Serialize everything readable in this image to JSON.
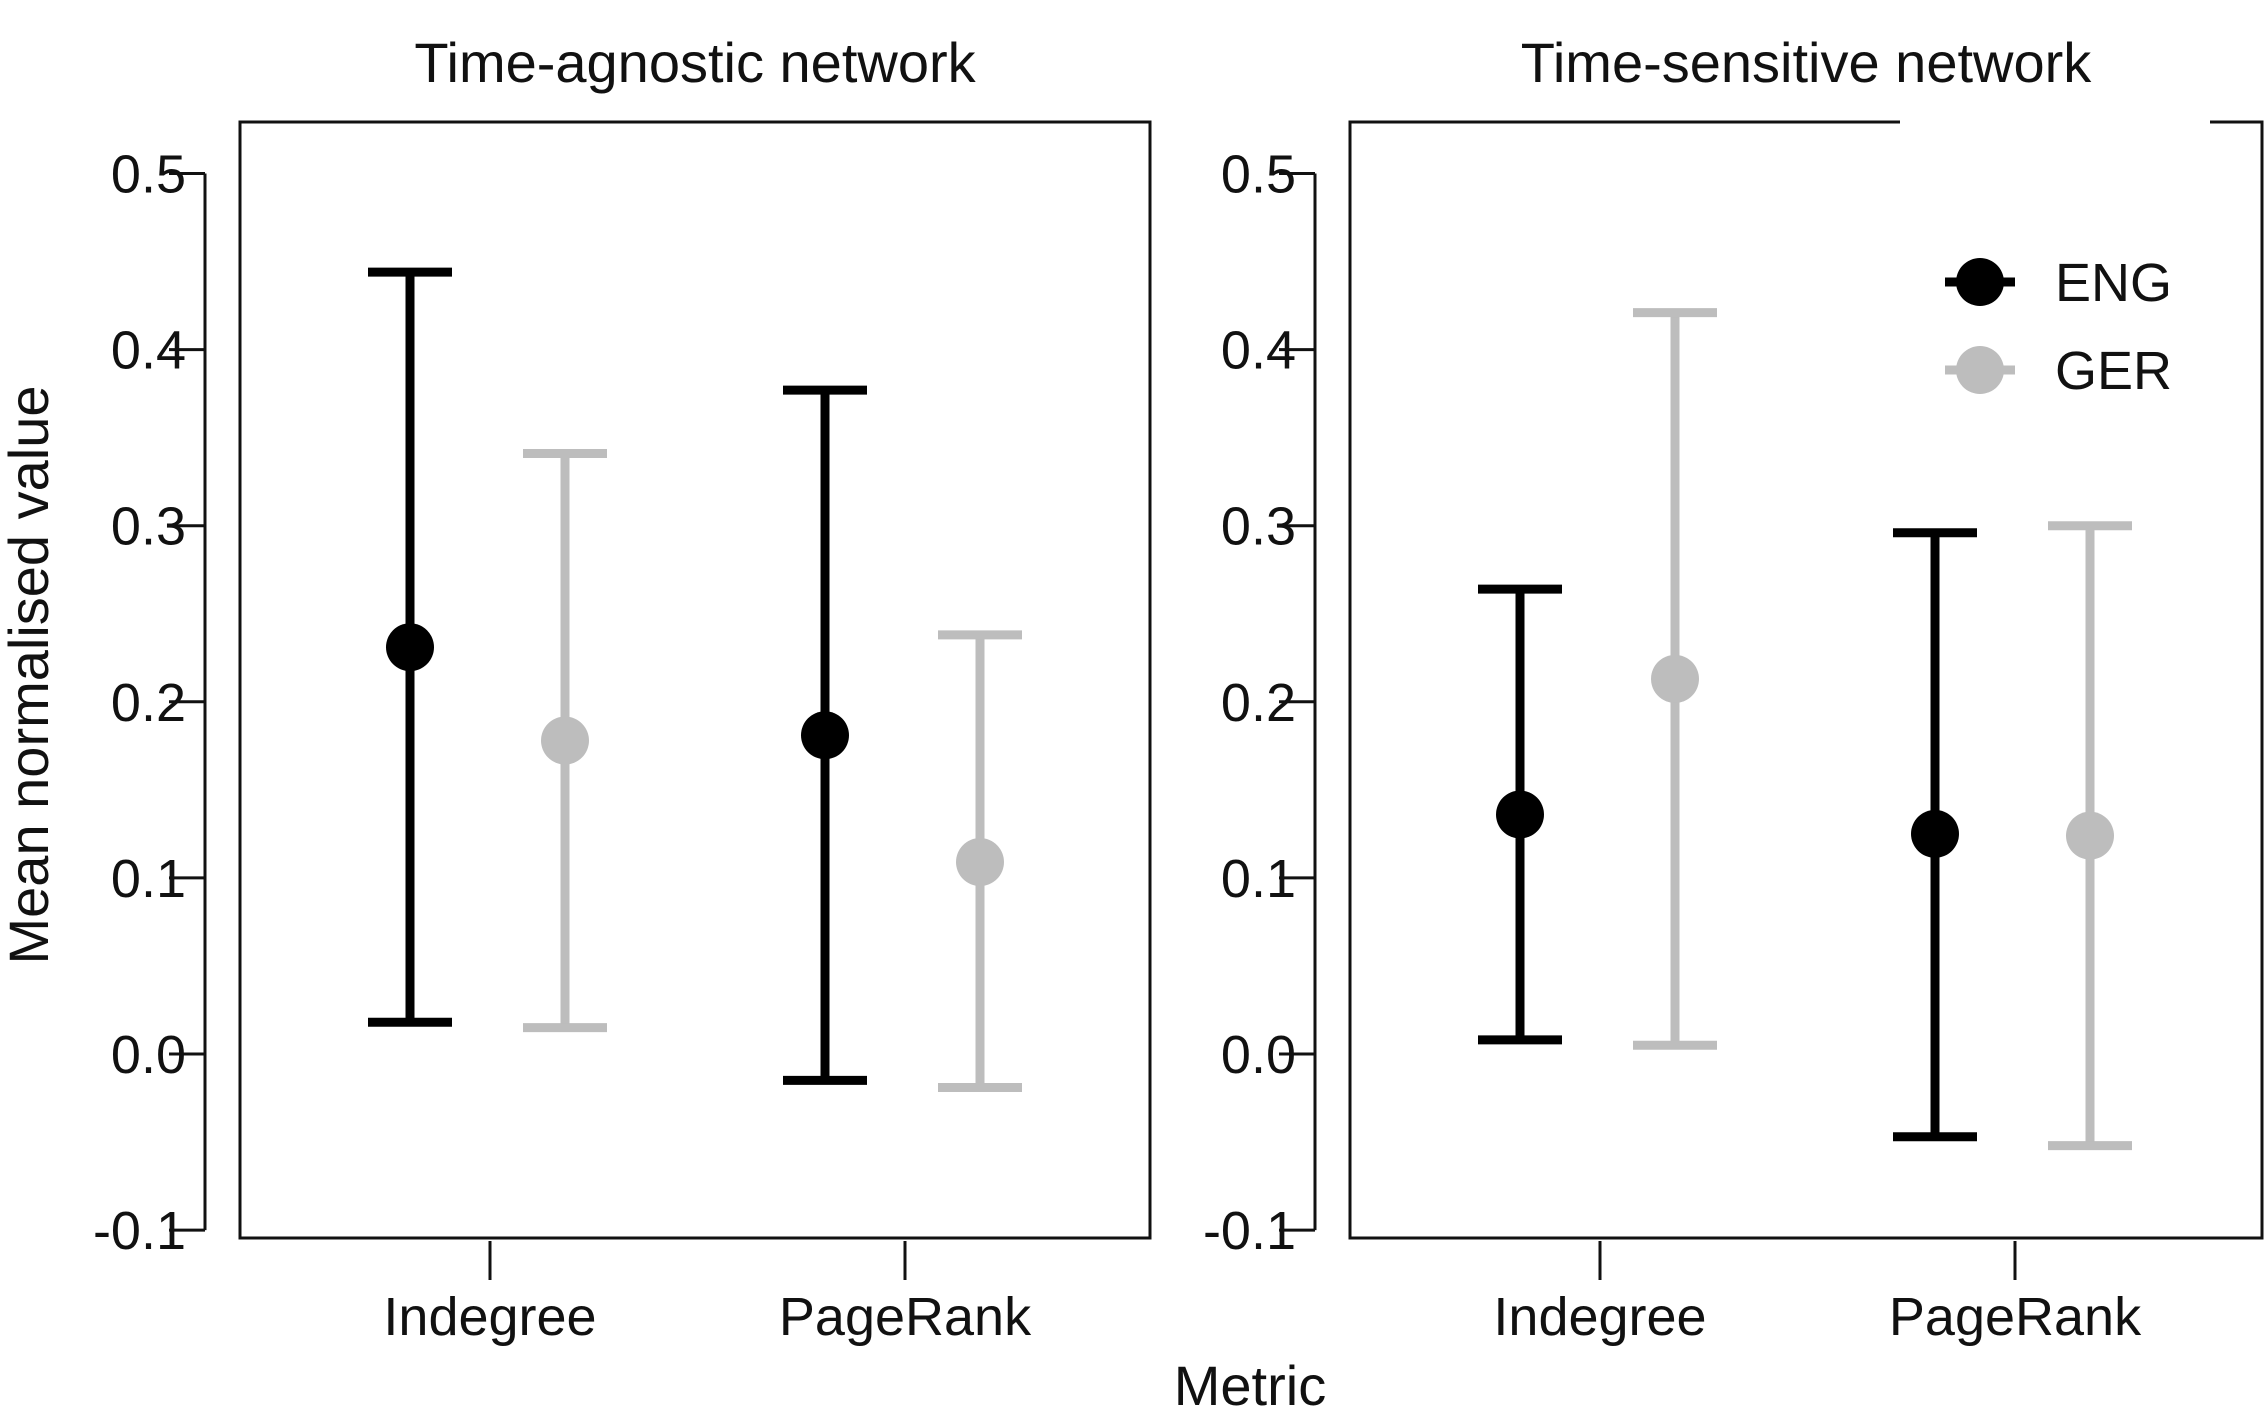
{
  "chart_data": {
    "type": "errorbar",
    "xlabel": "Metric",
    "ylabel": "Mean normalised value",
    "ylim": [
      -0.1,
      0.5
    ],
    "yticks": [
      -0.1,
      0.0,
      0.1,
      0.2,
      0.3,
      0.4,
      0.5
    ],
    "ytick_labels": [
      "-0.1",
      "0.0",
      "0.1",
      "0.2",
      "0.3",
      "0.4",
      "0.5"
    ],
    "categories": [
      "Indegree",
      "PageRank"
    ],
    "legend": {
      "position": "top-right",
      "entries": [
        "ENG",
        "GER"
      ]
    },
    "colors": {
      "ENG": "#000000",
      "GER": "#bdbdbd"
    },
    "grid": false,
    "panels": [
      {
        "title": "Time-agnostic network",
        "series": [
          {
            "name": "ENG",
            "means": [
              0.231,
              0.181
            ],
            "lower": [
              0.018,
              -0.015
            ],
            "upper": [
              0.444,
              0.377
            ]
          },
          {
            "name": "GER",
            "means": [
              0.178,
              0.109
            ],
            "lower": [
              0.015,
              -0.019
            ],
            "upper": [
              0.341,
              0.238
            ]
          }
        ]
      },
      {
        "title": "Time-sensitive network",
        "series": [
          {
            "name": "ENG",
            "means": [
              0.136,
              0.125
            ],
            "lower": [
              0.008,
              -0.047
            ],
            "upper": [
              0.264,
              0.296
            ]
          },
          {
            "name": "GER",
            "means": [
              0.213,
              0.124
            ],
            "lower": [
              0.005,
              -0.052
            ],
            "upper": [
              0.421,
              0.3
            ]
          }
        ]
      }
    ]
  }
}
